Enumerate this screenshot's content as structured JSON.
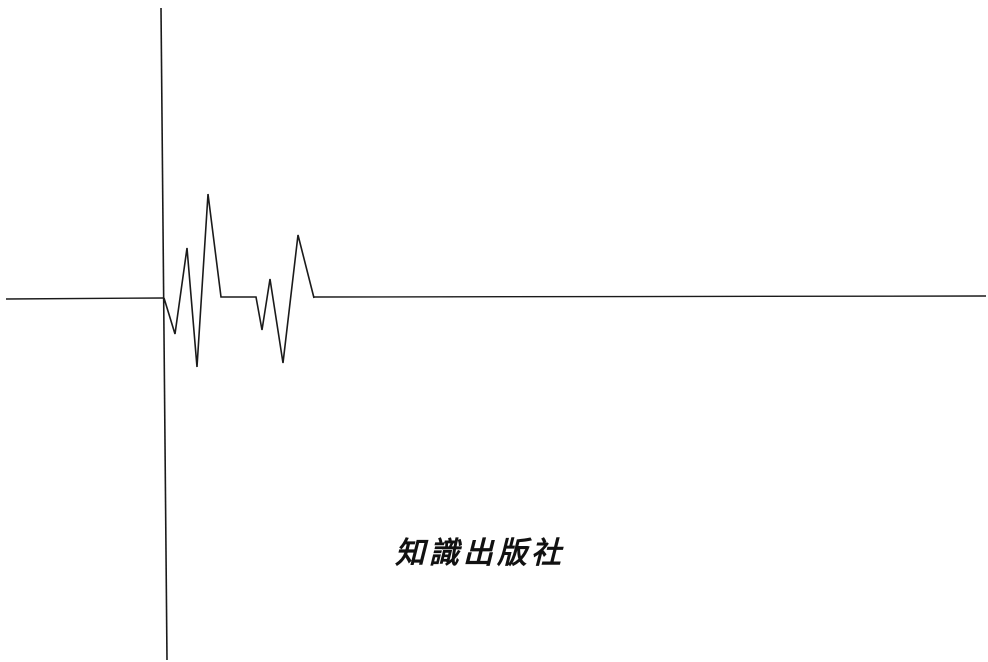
{
  "publisher": {
    "name": "知識出版社"
  }
}
